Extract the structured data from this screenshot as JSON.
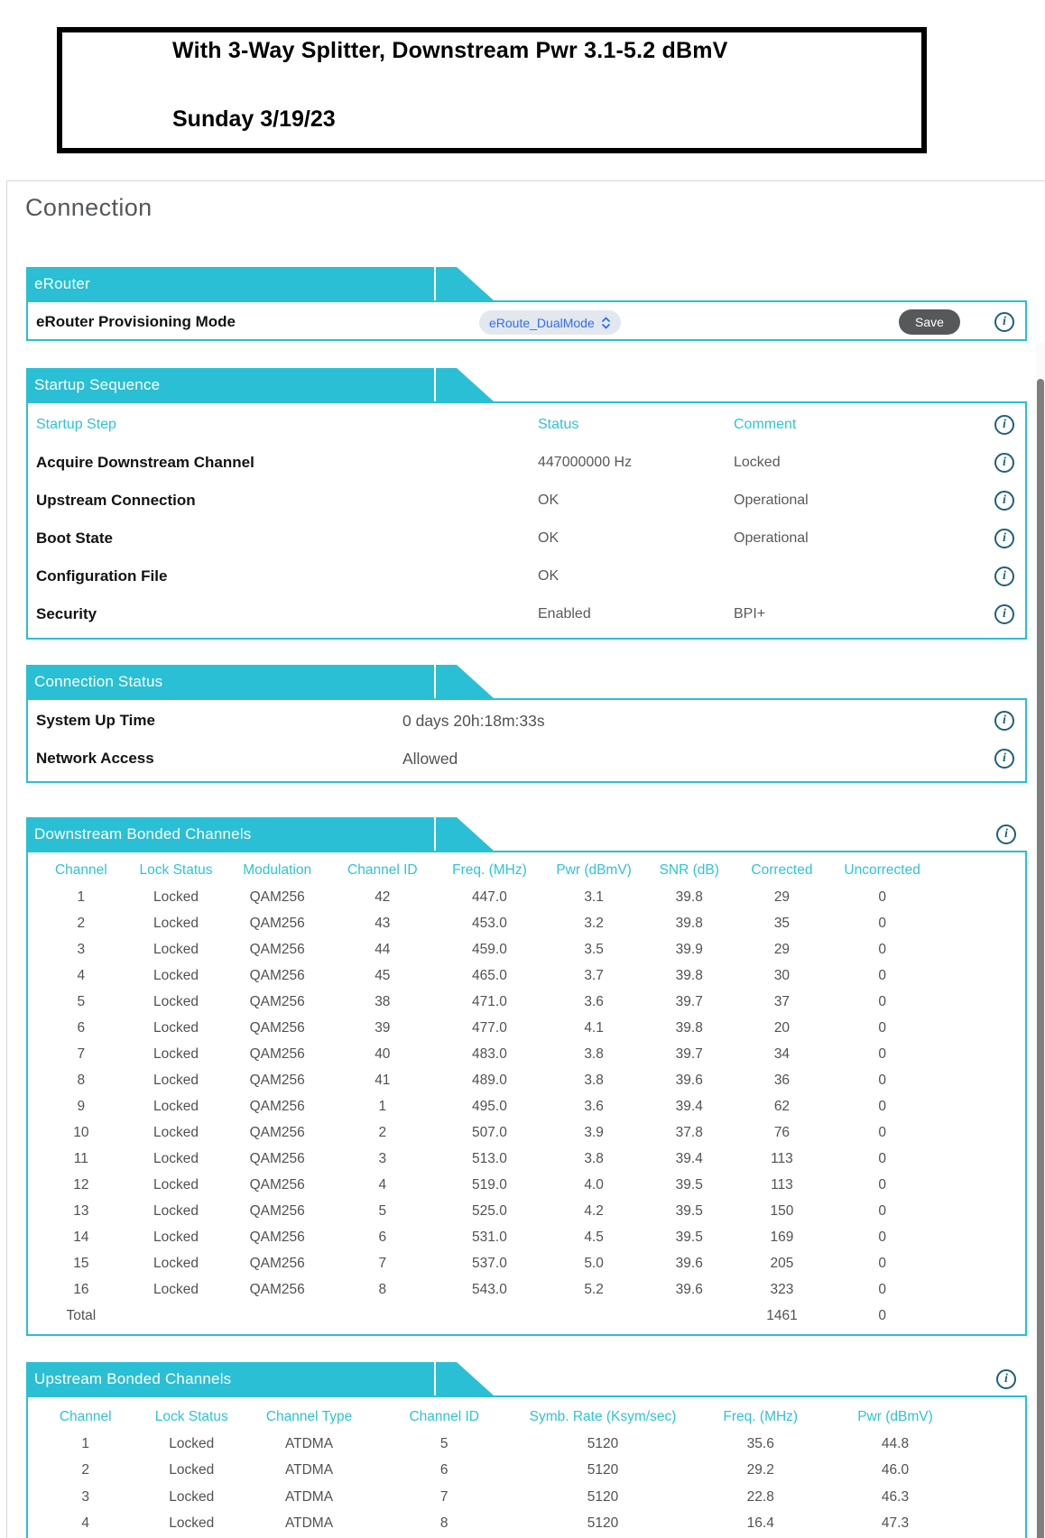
{
  "title_box": {
    "line1": "With 3-Way Splitter, Downstream Pwr 3.1-5.2 dBmV",
    "line2": "Sunday 3/19/23"
  },
  "page": {
    "heading": "Connection"
  },
  "colors": {
    "banner_teal": "#2abfd4",
    "header_text_teal": "#2fc3d8",
    "info_icon": "#1e6078",
    "save_button_bg": "#57585a",
    "dropdown_bg": "#e3e8ee",
    "dropdown_text": "#2f6df6",
    "label_text": "#131313",
    "value_text": "#58595b"
  },
  "icons": {
    "info": "info-circle-i",
    "dropdown_arrows": "up-down-chevrons"
  },
  "erouter": {
    "banner": "eRouter",
    "row_label": "eRouter Provisioning Mode",
    "dropdown_value": "eRoute_DualMode",
    "save_label": "Save"
  },
  "startup": {
    "banner": "Startup Sequence",
    "headers": [
      "Startup Step",
      "Status",
      "Comment"
    ],
    "rows": [
      {
        "step": "Acquire Downstream Channel",
        "status": "447000000 Hz",
        "comment": "Locked"
      },
      {
        "step": "Upstream Connection",
        "status": "OK",
        "comment": "Operational"
      },
      {
        "step": "Boot State",
        "status": "OK",
        "comment": "Operational"
      },
      {
        "step": "Configuration File",
        "status": "OK",
        "comment": ""
      },
      {
        "step": "Security",
        "status": "Enabled",
        "comment": "BPI+"
      }
    ]
  },
  "connection_status": {
    "banner": "Connection Status",
    "rows": [
      {
        "label": "System Up Time",
        "value": "0 days 20h:18m:33s"
      },
      {
        "label": "Network Access",
        "value": "Allowed"
      }
    ]
  },
  "downstream": {
    "banner": "Downstream Bonded Channels",
    "headers": [
      "Channel",
      "Lock Status",
      "Modulation",
      "Channel ID",
      "Freq. (MHz)",
      "Pwr (dBmV)",
      "SNR (dB)",
      "Corrected",
      "Uncorrected"
    ],
    "rows": [
      [
        "1",
        "Locked",
        "QAM256",
        "42",
        "447.0",
        "3.1",
        "39.8",
        "29",
        "0"
      ],
      [
        "2",
        "Locked",
        "QAM256",
        "43",
        "453.0",
        "3.2",
        "39.8",
        "35",
        "0"
      ],
      [
        "3",
        "Locked",
        "QAM256",
        "44",
        "459.0",
        "3.5",
        "39.9",
        "29",
        "0"
      ],
      [
        "4",
        "Locked",
        "QAM256",
        "45",
        "465.0",
        "3.7",
        "39.8",
        "30",
        "0"
      ],
      [
        "5",
        "Locked",
        "QAM256",
        "38",
        "471.0",
        "3.6",
        "39.7",
        "37",
        "0"
      ],
      [
        "6",
        "Locked",
        "QAM256",
        "39",
        "477.0",
        "4.1",
        "39.8",
        "20",
        "0"
      ],
      [
        "7",
        "Locked",
        "QAM256",
        "40",
        "483.0",
        "3.8",
        "39.7",
        "34",
        "0"
      ],
      [
        "8",
        "Locked",
        "QAM256",
        "41",
        "489.0",
        "3.8",
        "39.6",
        "36",
        "0"
      ],
      [
        "9",
        "Locked",
        "QAM256",
        "1",
        "495.0",
        "3.6",
        "39.4",
        "62",
        "0"
      ],
      [
        "10",
        "Locked",
        "QAM256",
        "2",
        "507.0",
        "3.9",
        "37.8",
        "76",
        "0"
      ],
      [
        "11",
        "Locked",
        "QAM256",
        "3",
        "513.0",
        "3.8",
        "39.4",
        "113",
        "0"
      ],
      [
        "12",
        "Locked",
        "QAM256",
        "4",
        "519.0",
        "4.0",
        "39.5",
        "113",
        "0"
      ],
      [
        "13",
        "Locked",
        "QAM256",
        "5",
        "525.0",
        "4.2",
        "39.5",
        "150",
        "0"
      ],
      [
        "14",
        "Locked",
        "QAM256",
        "6",
        "531.0",
        "4.5",
        "39.5",
        "169",
        "0"
      ],
      [
        "15",
        "Locked",
        "QAM256",
        "7",
        "537.0",
        "5.0",
        "39.6",
        "205",
        "0"
      ],
      [
        "16",
        "Locked",
        "QAM256",
        "8",
        "543.0",
        "5.2",
        "39.6",
        "323",
        "0"
      ],
      [
        "Total",
        "",
        "",
        "",
        "",
        "",
        "",
        "1461",
        "0"
      ]
    ]
  },
  "upstream": {
    "banner": "Upstream Bonded Channels",
    "headers": [
      "Channel",
      "Lock Status",
      "Channel Type",
      "Channel ID",
      "Symb. Rate (Ksym/sec)",
      "Freq. (MHz)",
      "Pwr (dBmV)"
    ],
    "rows": [
      [
        "1",
        "Locked",
        "ATDMA",
        "5",
        "5120",
        "35.6",
        "44.8"
      ],
      [
        "2",
        "Locked",
        "ATDMA",
        "6",
        "5120",
        "29.2",
        "46.0"
      ],
      [
        "3",
        "Locked",
        "ATDMA",
        "7",
        "5120",
        "22.8",
        "46.3"
      ],
      [
        "4",
        "Locked",
        "ATDMA",
        "8",
        "5120",
        "16.4",
        "47.3"
      ]
    ]
  }
}
